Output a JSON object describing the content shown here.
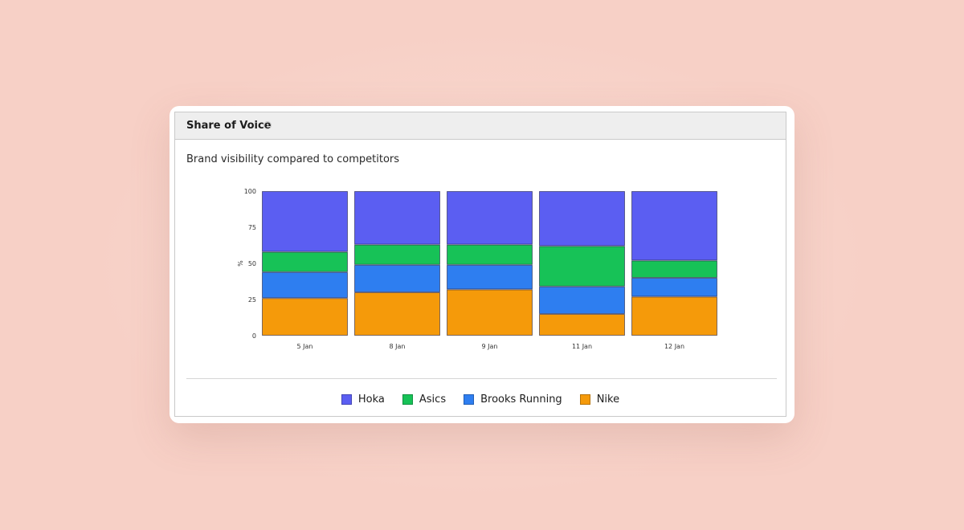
{
  "card": {
    "title": "Share of Voice",
    "subtitle": "Brand visibility compared to competitors"
  },
  "chart_data": {
    "type": "bar",
    "stacked": true,
    "categories": [
      "5 Jan",
      "8 Jan",
      "9 Jan",
      "11 Jan",
      "12 Jan"
    ],
    "series": [
      {
        "name": "Nike",
        "color": "#f59a0a",
        "values": [
          26,
          30,
          32,
          15,
          27
        ]
      },
      {
        "name": "Brooks Running",
        "color": "#2e7ef0",
        "values": [
          18,
          19,
          17,
          19,
          13
        ]
      },
      {
        "name": "Asics",
        "color": "#17c257",
        "values": [
          14,
          14,
          14,
          28,
          12
        ]
      },
      {
        "name": "Hoka",
        "color": "#5b5ef2",
        "values": [
          42,
          37,
          37,
          38,
          48
        ]
      }
    ],
    "ylabel": "%",
    "yticks": [
      0,
      25,
      50,
      75,
      100
    ],
    "ylim": [
      0,
      100
    ],
    "legend_position": "bottom",
    "grid": false
  },
  "legend": [
    {
      "label": "Hoka",
      "color": "#5b5ef2"
    },
    {
      "label": "Asics",
      "color": "#17c257"
    },
    {
      "label": "Brooks Running",
      "color": "#2e7ef0"
    },
    {
      "label": "Nike",
      "color": "#f59a0a"
    }
  ]
}
